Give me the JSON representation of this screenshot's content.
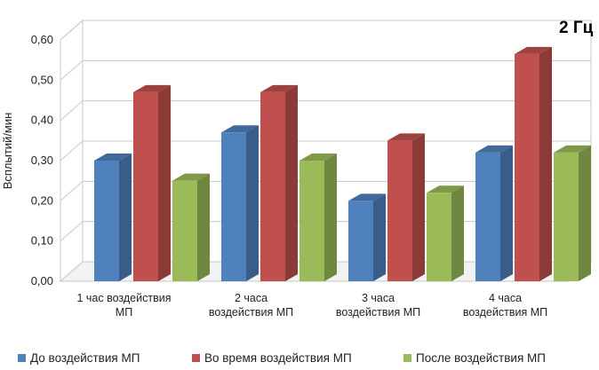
{
  "chart_data": {
    "type": "bar",
    "style": "3d-clustered-column",
    "title": "",
    "annotation": "2 Гц",
    "xlabel": "",
    "ylabel": "Всплытий/мин",
    "ylim": [
      0,
      0.6
    ],
    "yticks": [
      "0,00",
      "0,10",
      "0,20",
      "0,30",
      "0,40",
      "0,50",
      "0,60"
    ],
    "grid": true,
    "legend_position": "bottom",
    "categories": [
      [
        "1 час воздействия",
        "МП"
      ],
      [
        "2 часа",
        "воздействия МП"
      ],
      [
        "3 часа",
        "воздействия МП"
      ],
      [
        "4 часа",
        "воздействия МП"
      ]
    ],
    "series": [
      {
        "name": "До воздействия МП",
        "color": "#4F81BD",
        "values": [
          0.3,
          0.37,
          0.2,
          0.32
        ]
      },
      {
        "name": "Во время воздействия МП",
        "color": "#C0504D",
        "values": [
          0.47,
          0.47,
          0.35,
          0.565
        ]
      },
      {
        "name": "После воздействия МП",
        "color": "#9BBB59",
        "values": [
          0.25,
          0.3,
          0.22,
          0.32
        ]
      }
    ]
  }
}
